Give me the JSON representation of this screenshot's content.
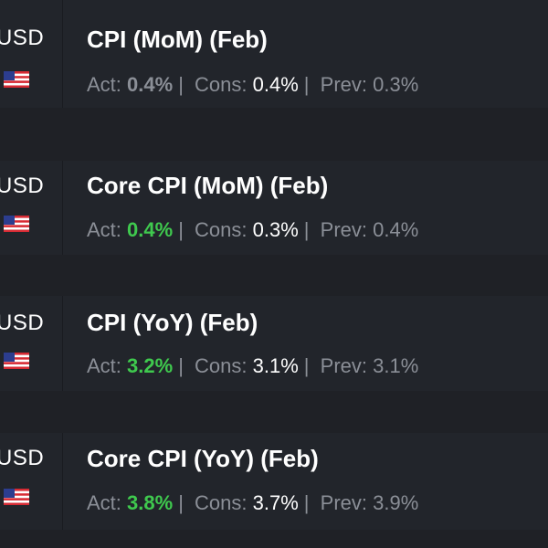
{
  "events": [
    {
      "currency": "USD",
      "flag_icon": "us-flag-icon",
      "title": "CPI (MoM) (Feb)",
      "act_label": "Act:",
      "act_value": "0.4%",
      "act_status": "neutral",
      "cons_label": "Cons:",
      "cons_value": "0.4%",
      "prev_label": "Prev:",
      "prev_value": "0.3%"
    },
    {
      "currency": "USD",
      "flag_icon": "us-flag-icon",
      "title": "Core CPI (MoM) (Feb)",
      "act_label": "Act:",
      "act_value": "0.4%",
      "act_status": "beat",
      "cons_label": "Cons:",
      "cons_value": "0.3%",
      "prev_label": "Prev:",
      "prev_value": "0.4%"
    },
    {
      "currency": "USD",
      "flag_icon": "us-flag-icon",
      "title": "CPI (YoY) (Feb)",
      "act_label": "Act:",
      "act_value": "3.2%",
      "act_status": "beat",
      "cons_label": "Cons:",
      "cons_value": "3.1%",
      "prev_label": "Prev:",
      "prev_value": "3.1%"
    },
    {
      "currency": "USD",
      "flag_icon": "us-flag-icon",
      "title": "Core CPI (YoY) (Feb)",
      "act_label": "Act:",
      "act_value": "3.8%",
      "act_status": "beat",
      "cons_label": "Cons:",
      "cons_value": "3.7%",
      "prev_label": "Prev:",
      "prev_value": "3.9%"
    }
  ],
  "separator": "|",
  "colors": {
    "background": "#1f2126",
    "card": "#22252b",
    "beat": "#3fc94e",
    "muted": "#8b8f97",
    "text": "#ffffff"
  }
}
